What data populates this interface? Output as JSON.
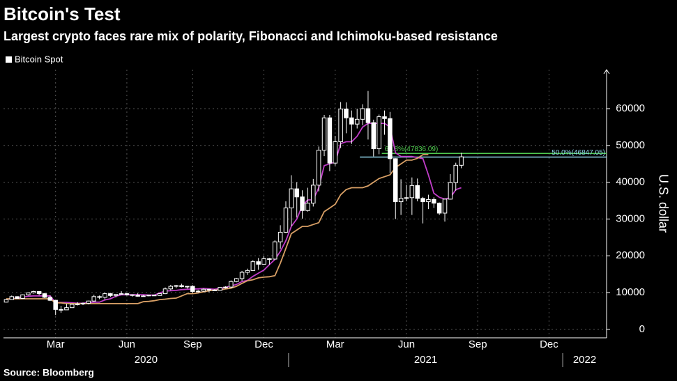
{
  "chart_data": {
    "type": "candlestick",
    "title": "Bitcoin's Test",
    "subtitle": "Largest crypto faces rare mix of polarity, Fibonacci and Ichimoku-based resistance",
    "y_label": "U.S. dollar",
    "source": "Source: Bloomberg",
    "categories": [
      null,
      null,
      null,
      null,
      null,
      null,
      null,
      null,
      null,
      "Mar",
      null,
      null,
      null,
      null,
      null,
      null,
      null,
      null,
      null,
      null,
      null,
      null,
      "Jun",
      null,
      null,
      null,
      null,
      null,
      null,
      null,
      null,
      null,
      null,
      null,
      "Sep",
      null,
      null,
      null,
      null,
      null,
      null,
      null,
      null,
      null,
      null,
      null,
      null,
      "Dec",
      null,
      null,
      null,
      null,
      null,
      null,
      null,
      null,
      null,
      null,
      null,
      null,
      "Mar",
      null,
      null,
      null,
      null,
      null,
      null,
      null,
      null,
      null,
      null,
      null,
      null,
      "Jun",
      null,
      null,
      null,
      null,
      null,
      null,
      null,
      null,
      null,
      null,
      null,
      null,
      "Sep",
      null,
      null,
      null,
      null,
      null,
      null,
      null,
      null,
      null,
      null,
      null,
      null,
      "Dec",
      null,
      null,
      null,
      null,
      null,
      null,
      null,
      null,
      null,
      null
    ],
    "x_groups": [
      {
        "label": "2020",
        "from": 0,
        "to": 51
      },
      {
        "label": "2021",
        "from": 52,
        "to": 101
      },
      {
        "label": "2022",
        "from": 102,
        "to": 109
      }
    ],
    "series": [
      {
        "name": "Bitcoin Spot",
        "color": "#ffffff",
        "open": [
          7400,
          8100,
          8900,
          8400,
          9400,
          9900,
          10300,
          9700,
          8700,
          7900,
          5400,
          5300,
          5900,
          6800,
          6900,
          7100,
          7700,
          8900,
          8700,
          9700,
          9200,
          9500,
          9700,
          9400,
          9300,
          9000,
          9100,
          9300,
          9200,
          9700,
          11000,
          11700,
          11900,
          11600,
          11700,
          10300,
          10400,
          10900,
          10700,
          10600,
          11400,
          11500,
          13000,
          13800,
          15500,
          16000,
          18400,
          17700,
          19200,
          19100,
          23800,
          26400,
          33000,
          38200,
          36000,
          32300,
          34300,
          39200,
          48700,
          57500,
          45200,
          51000,
          59900,
          57500,
          55800,
          57100,
          60000,
          56200,
          49100,
          57800,
          57300,
          46400,
          34700,
          35600,
          35800,
          39100,
          35600,
          34700,
          35300,
          34300,
          31600,
          35400,
          39900,
          44600,
          null,
          null,
          null,
          null,
          null,
          null,
          null,
          null,
          null,
          null,
          null,
          null,
          null,
          null,
          null,
          null,
          null,
          null,
          null,
          null,
          null,
          null,
          null,
          null,
          null,
          null
        ],
        "high": [
          8300,
          9200,
          9000,
          9500,
          10000,
          10500,
          10300,
          9900,
          9200,
          8000,
          6400,
          6900,
          7000,
          7400,
          7300,
          7800,
          9400,
          9200,
          10000,
          9900,
          9600,
          10400,
          9900,
          9500,
          9800,
          9300,
          9400,
          9400,
          9800,
          11400,
          12100,
          12100,
          12400,
          11800,
          12000,
          10700,
          11100,
          11000,
          10900,
          11500,
          11700,
          13300,
          14000,
          15900,
          16500,
          18800,
          19400,
          19900,
          19400,
          24200,
          28300,
          34800,
          41900,
          40000,
          37800,
          38500,
          40900,
          49700,
          58300,
          58300,
          52600,
          61800,
          61700,
          59500,
          60000,
          61200,
          64800,
          57000,
          58400,
          59500,
          59100,
          46500,
          40800,
          39300,
          41300,
          41000,
          36000,
          36600,
          35900,
          34500,
          35500,
          42200,
          45300,
          48000,
          null,
          null,
          null,
          null,
          null,
          null,
          null,
          null,
          null,
          null,
          null,
          null,
          null,
          null,
          null,
          null,
          null,
          null,
          null,
          null,
          null,
          null,
          null,
          null,
          null,
          null
        ],
        "low": [
          7300,
          8000,
          8300,
          8300,
          9200,
          9700,
          9300,
          8500,
          7700,
          3900,
          4500,
          5300,
          5900,
          6500,
          6600,
          6800,
          7500,
          8200,
          8100,
          8800,
          8700,
          9400,
          9200,
          8900,
          8900,
          8900,
          9000,
          9100,
          9100,
          9600,
          10600,
          11200,
          11400,
          11100,
          9900,
          10000,
          10200,
          10100,
          10500,
          10500,
          11100,
          11300,
          12800,
          13200,
          14800,
          15900,
          16200,
          17600,
          17600,
          19000,
          21900,
          26200,
          28100,
          30400,
          30100,
          32000,
          33400,
          37500,
          47100,
          43000,
          44500,
          49300,
          53300,
          50400,
          54600,
          55500,
          51600,
          47000,
          47600,
          52900,
          42500,
          30000,
          31100,
          34800,
          31100,
          34800,
          28800,
          32700,
          33000,
          31100,
          29300,
          35300,
          37700,
          43800,
          null,
          null,
          null,
          null,
          null,
          null,
          null,
          null,
          null,
          null,
          null,
          null,
          null,
          null,
          null,
          null,
          null,
          null,
          null,
          null,
          null,
          null,
          null,
          null,
          null,
          null
        ],
        "close": [
          8100,
          8900,
          8400,
          9400,
          9900,
          10300,
          9700,
          8700,
          7900,
          5400,
          5300,
          5900,
          6800,
          6900,
          7100,
          7700,
          8900,
          8700,
          9700,
          9200,
          9500,
          9700,
          9400,
          9300,
          9000,
          9100,
          9300,
          9200,
          9700,
          11000,
          11700,
          11900,
          11600,
          11700,
          10300,
          10400,
          10900,
          10700,
          10600,
          11400,
          11500,
          13000,
          13800,
          15500,
          16000,
          18400,
          17700,
          19200,
          19100,
          23800,
          26400,
          33000,
          38200,
          36000,
          32300,
          34300,
          39200,
          48700,
          57500,
          45200,
          51000,
          59900,
          57500,
          55800,
          57100,
          60000,
          56200,
          49100,
          57800,
          57300,
          46400,
          34700,
          35600,
          35800,
          39100,
          35600,
          34700,
          35300,
          34300,
          31600,
          35400,
          39900,
          44600,
          46900,
          null,
          null,
          null,
          null,
          null,
          null,
          null,
          null,
          null,
          null,
          null,
          null,
          null,
          null,
          null,
          null,
          null,
          null,
          null,
          null,
          null,
          null,
          null,
          null,
          null,
          null
        ]
      }
    ],
    "lines": [
      {
        "color": "#c03cc8",
        "values": [
          8200,
          8300,
          8500,
          8700,
          9000,
          9100,
          9100,
          9100,
          9100,
          7300,
          7300,
          7300,
          7200,
          7100,
          7100,
          7300,
          7400,
          7400,
          8000,
          8300,
          9000,
          9400,
          9400,
          9400,
          9400,
          9400,
          9300,
          9300,
          9900,
          10400,
          10500,
          10600,
          10800,
          10900,
          11000,
          11000,
          11100,
          11000,
          10900,
          11100,
          11400,
          11800,
          12200,
          13000,
          13300,
          14400,
          15300,
          16100,
          17600,
          19000,
          21200,
          24100,
          28000,
          30000,
          33600,
          35200,
          35200,
          38500,
          44500,
          45000,
          45500,
          50500,
          51000,
          51000,
          52500,
          55000,
          56000,
          56000,
          56000,
          56000,
          55000,
          48000,
          47000,
          47000,
          47000,
          46700,
          46400,
          42000,
          37000,
          35900,
          35400,
          35800,
          38000,
          38500,
          null,
          null,
          null,
          null,
          null,
          null,
          null,
          null,
          null,
          null,
          null,
          null,
          null,
          null,
          null,
          null,
          null,
          null,
          null,
          null,
          null,
          null,
          null,
          null,
          null,
          null
        ]
      },
      {
        "color": "#d9a066",
        "values": [
          8300,
          8300,
          8300,
          8300,
          8300,
          8300,
          8300,
          8300,
          8300,
          7200,
          7200,
          7000,
          7000,
          7000,
          7000,
          7000,
          7000,
          7000,
          7000,
          7000,
          7000,
          7000,
          7000,
          7000,
          7000,
          7500,
          7600,
          7800,
          8100,
          8200,
          8400,
          8500,
          9100,
          9700,
          9700,
          9900,
          10200,
          10500,
          10700,
          10700,
          11000,
          11200,
          11700,
          12500,
          13200,
          13500,
          14000,
          14200,
          14300,
          14600,
          18000,
          22000,
          26000,
          27000,
          28000,
          28000,
          28500,
          29000,
          32000,
          33000,
          34000,
          36600,
          38000,
          38500,
          38500,
          38500,
          39000,
          40000,
          41000,
          41500,
          42000,
          44000,
          45000,
          46000,
          46000,
          46500,
          47500,
          47500,
          null,
          null,
          null,
          null,
          null,
          null,
          null,
          null,
          null,
          null,
          null,
          null,
          null,
          null,
          null,
          null,
          null,
          null,
          null,
          null,
          null,
          null,
          null,
          null,
          null,
          null,
          null,
          null,
          null,
          null,
          null,
          null
        ]
      }
    ],
    "levels": [
      {
        "label": "61.8%(47836.09)",
        "value": 47836.09,
        "from": 69,
        "color": "#4fc94f",
        "label_position": "start"
      },
      {
        "label": "50.0%(46847.05)",
        "value": 46847.05,
        "from": 65,
        "color": "#8fd3ea",
        "label_position": "end"
      }
    ],
    "ylim": [
      -2300,
      70600
    ],
    "yticks": [
      0,
      10000,
      20000,
      30000,
      40000,
      50000,
      60000
    ],
    "grid": true
  }
}
